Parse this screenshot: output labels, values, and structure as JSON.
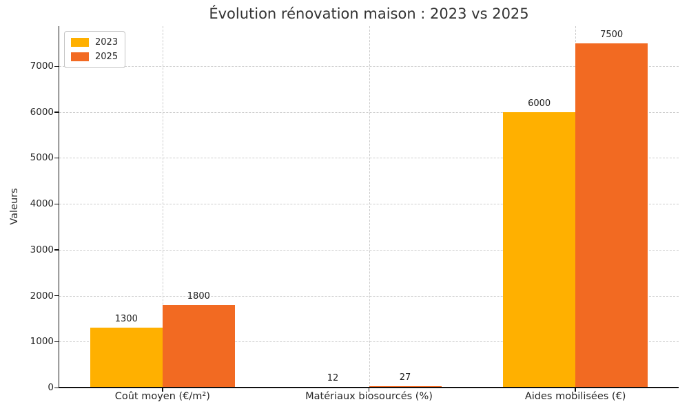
{
  "chart_data": {
    "type": "bar",
    "title": "Évolution rénovation maison : 2023 vs 2025",
    "ylabel": "Valeurs",
    "xlabel": "",
    "categories": [
      "Coût moyen (€/m²)",
      "Matériaux biosourcés (%)",
      "Aides mobilisées (€)"
    ],
    "series": [
      {
        "name": "2023",
        "color": "#FFB000",
        "values": [
          1300,
          12,
          6000
        ]
      },
      {
        "name": "2025",
        "color": "#F26A22",
        "values": [
          1800,
          27,
          7500
        ]
      }
    ],
    "yticks": [
      0,
      1000,
      2000,
      3000,
      4000,
      5000,
      6000,
      7000
    ],
    "ylim": [
      0,
      7870
    ],
    "grid": "both, dashed",
    "legend_position": "upper-left",
    "value_labels_shown": true
  },
  "style": {
    "grid_color": "#cccccc",
    "axis_color": "#111111",
    "text_color": "#262626",
    "title_color": "#333333",
    "background": "#ffffff"
  }
}
